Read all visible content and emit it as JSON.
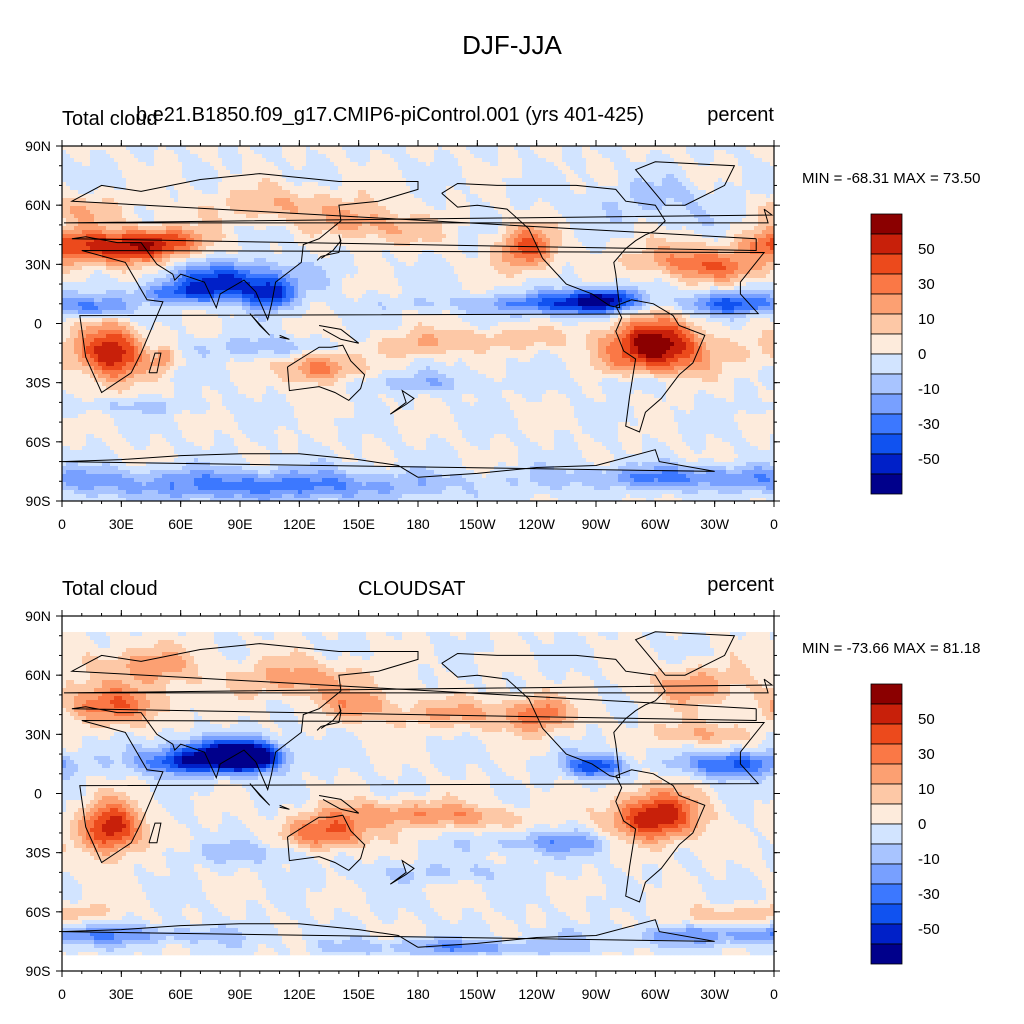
{
  "figure": {
    "title": "DJF-JJA",
    "colors": [
      "#00008b",
      "#0020c8",
      "#1052f0",
      "#3c78ff",
      "#78a0ff",
      "#a8c4ff",
      "#d2e4ff",
      "#fdebdc",
      "#fdc8a6",
      "#fca072",
      "#fa7846",
      "#ec4a1c",
      "#c8200a",
      "#8b0000"
    ],
    "colorbar_labels": [
      "50",
      "30",
      "10",
      "0",
      "-10",
      "-30",
      "-50"
    ],
    "panels": [
      {
        "left_label": "Total cloud",
        "center_label": "b.e21.B1850.f09_g17.CMIP6-piControl.001 (yrs 401-425)",
        "right_label": "percent",
        "stats": "MIN = -68.31 MAX =  73.50",
        "lat_labels": [
          "90N",
          "60N",
          "30N",
          "0",
          "30S",
          "60S",
          "90S"
        ],
        "lon_labels": [
          "0",
          "30E",
          "60E",
          "90E",
          "120E",
          "150E",
          "180",
          "150W",
          "120W",
          "90W",
          "60W",
          "30W",
          "0"
        ],
        "field": {
          "type": "contour-map",
          "min": -68.31,
          "max": 73.5,
          "units": "percent",
          "data_extent": "90S-90N"
        }
      },
      {
        "left_label": "Total cloud",
        "center_label": "CLOUDSAT",
        "right_label": "percent",
        "stats": "MIN = -73.66 MAX =  81.18",
        "lat_labels": [
          "90N",
          "60N",
          "30N",
          "0",
          "30S",
          "60S",
          "90S"
        ],
        "lon_labels": [
          "0",
          "30E",
          "60E",
          "90E",
          "120E",
          "150E",
          "180",
          "150W",
          "120W",
          "90W",
          "60W",
          "30W",
          "0"
        ],
        "field": {
          "type": "contour-map",
          "min": -73.66,
          "max": 81.18,
          "units": "percent",
          "data_extent": "82S-82N"
        }
      }
    ]
  }
}
